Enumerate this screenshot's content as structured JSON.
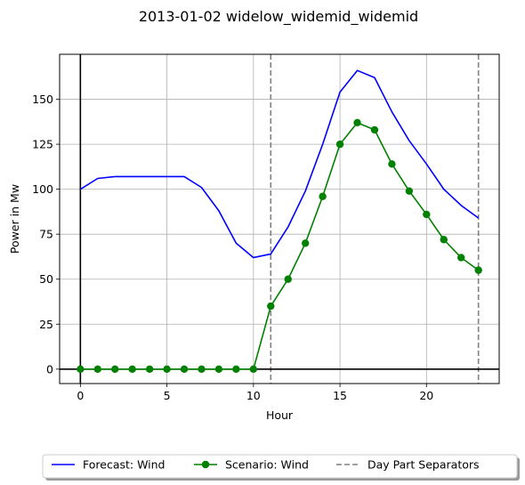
{
  "chart_data": {
    "type": "line",
    "title": "2013-01-02 widelow_widemid_widemid",
    "xlabel": "Hour",
    "ylabel": "Power in Mw",
    "xlim": [
      -1.2,
      24.2
    ],
    "ylim": [
      -8,
      175
    ],
    "xticks": [
      0,
      5,
      10,
      15,
      20
    ],
    "yticks": [
      0,
      25,
      50,
      75,
      100,
      125,
      150
    ],
    "grid": true,
    "legend_position": "bottom-center",
    "x": [
      0,
      1,
      2,
      3,
      4,
      5,
      6,
      7,
      8,
      9,
      10,
      11,
      12,
      13,
      14,
      15,
      16,
      17,
      18,
      19,
      20,
      21,
      22,
      23
    ],
    "series": [
      {
        "name": "Forecast: Wind",
        "color": "#0000ff",
        "marker": "none",
        "style": "solid",
        "values": [
          100,
          106,
          107,
          107,
          107,
          107,
          107,
          101,
          88,
          70,
          62,
          64,
          79,
          99,
          125,
          154,
          166,
          162,
          143,
          127,
          114,
          100,
          91,
          84
        ]
      },
      {
        "name": "Scenario: Wind",
        "color": "#008000",
        "marker": "circle",
        "style": "solid",
        "values": [
          0,
          0,
          0,
          0,
          0,
          0,
          0,
          0,
          0,
          0,
          0,
          35,
          50,
          70,
          96,
          125,
          137,
          133,
          114,
          99,
          86,
          72,
          62,
          55
        ]
      }
    ],
    "separators": {
      "name": "Day Part Separators",
      "color": "#808080",
      "style": "dashed",
      "x": [
        11,
        23
      ]
    },
    "reference_lines": {
      "x_zero": 0,
      "y_zero": 0
    }
  }
}
